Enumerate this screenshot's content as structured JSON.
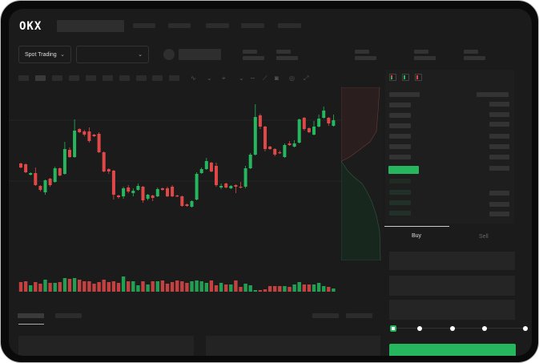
{
  "brand": {
    "logo": "OKX"
  },
  "header": {
    "nav_items": [
      "",
      "",
      "",
      "",
      ""
    ]
  },
  "market_bar": {
    "mode_dropdown": "Spot Trading",
    "pair_dropdown": ""
  },
  "trade_form": {
    "tabs": [
      {
        "label": "Buy",
        "active": true
      },
      {
        "label": "Sell",
        "active": false
      }
    ],
    "slider_percent": 0,
    "submit_color": "#25b65e"
  },
  "colors": {
    "up": "#25b65e",
    "down": "#e04848",
    "background": "#1b1b1b"
  },
  "chart_data": {
    "type": "candlestick",
    "ohlc": [
      [
        67,
        68,
        61,
        62
      ],
      [
        66,
        67,
        55,
        56
      ],
      [
        53,
        56,
        52,
        55
      ],
      [
        55,
        62,
        39,
        40
      ],
      [
        39,
        40,
        32,
        34
      ],
      [
        31,
        47,
        28,
        46
      ],
      [
        48,
        49,
        38,
        40
      ],
      [
        44,
        63,
        43,
        61
      ],
      [
        61,
        62,
        51,
        52
      ],
      [
        54,
        94,
        53,
        85
      ],
      [
        84,
        87,
        74,
        75
      ],
      [
        75,
        122,
        74,
        108
      ],
      [
        110,
        111,
        105,
        106
      ],
      [
        107,
        109,
        101,
        103
      ],
      [
        107,
        112,
        93,
        95
      ],
      [
        103,
        104,
        100,
        101
      ],
      [
        104,
        106,
        80,
        81
      ],
      [
        81,
        82,
        56,
        57
      ],
      [
        60,
        61,
        54,
        57
      ],
      [
        58,
        59,
        22,
        28
      ],
      [
        27,
        28,
        23,
        25
      ],
      [
        26,
        38,
        23,
        36
      ],
      [
        37,
        40,
        30,
        32
      ],
      [
        30,
        36,
        26,
        33
      ],
      [
        34,
        42,
        33,
        39
      ],
      [
        38,
        39,
        18,
        21
      ],
      [
        23,
        29,
        21,
        28
      ],
      [
        27,
        28,
        20,
        24
      ],
      [
        26,
        37,
        25,
        35
      ],
      [
        36,
        37,
        33,
        34
      ],
      [
        36,
        38,
        25,
        26
      ],
      [
        38,
        40,
        25,
        26
      ],
      [
        27,
        28,
        25,
        26
      ],
      [
        26,
        27,
        13,
        14
      ],
      [
        16,
        17,
        13,
        14
      ],
      [
        13,
        21,
        12,
        20
      ],
      [
        22,
        56,
        21,
        54
      ],
      [
        55,
        62,
        54,
        60
      ],
      [
        60,
        74,
        59,
        70
      ],
      [
        68,
        69,
        56,
        57
      ],
      [
        64,
        68,
        38,
        40
      ],
      [
        37,
        42,
        35,
        39
      ],
      [
        42,
        43,
        36,
        37
      ],
      [
        36,
        40,
        35,
        39
      ],
      [
        40,
        41,
        30,
        38
      ],
      [
        38,
        44,
        36,
        37
      ],
      [
        38,
        64,
        36,
        61
      ],
      [
        61,
        80,
        60,
        78
      ],
      [
        78,
        141,
        77,
        125
      ],
      [
        127,
        129,
        110,
        113
      ],
      [
        113,
        114,
        82,
        85
      ],
      [
        88,
        89,
        84,
        85
      ],
      [
        85,
        86,
        76,
        78
      ],
      [
        81,
        83,
        79,
        80
      ],
      [
        75,
        92,
        74,
        90
      ],
      [
        92,
        95,
        89,
        90
      ],
      [
        88,
        96,
        87,
        92
      ],
      [
        93,
        123,
        92,
        122
      ],
      [
        124,
        125,
        108,
        110
      ],
      [
        111,
        112,
        105,
        106
      ],
      [
        103,
        120,
        102,
        113
      ],
      [
        113,
        128,
        112,
        123
      ],
      [
        124,
        138,
        123,
        133
      ],
      [
        124,
        125,
        114,
        117
      ],
      [
        114,
        128,
        113,
        121
      ]
    ],
    "volume": [
      60,
      65,
      40,
      60,
      50,
      75,
      55,
      55,
      60,
      85,
      80,
      85,
      75,
      65,
      65,
      50,
      60,
      75,
      60,
      65,
      55,
      95,
      65,
      65,
      40,
      65,
      45,
      65,
      65,
      70,
      50,
      60,
      70,
      65,
      55,
      65,
      70,
      65,
      55,
      70,
      40,
      55,
      45,
      45,
      70,
      30,
      50,
      40,
      10,
      10,
      15,
      35,
      35,
      35,
      35,
      30,
      45,
      60,
      45,
      45,
      45,
      55,
      35,
      30,
      20
    ]
  }
}
